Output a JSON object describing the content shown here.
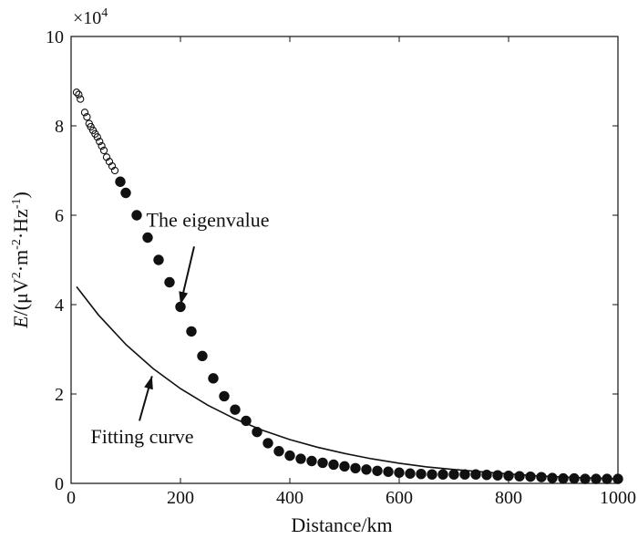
{
  "chart_data": {
    "type": "scatter",
    "title": "",
    "xlabel": "Distance/km",
    "ylabel": "E/(μV²·m⁻²·Hz⁻¹)",
    "ylabel_parts": {
      "italic": "E",
      "rest": "/(μV",
      "sup1": "2",
      "mid1": "·m",
      "sup2": "-2",
      "mid2": "·Hz",
      "sup3": "-1",
      "end": ")"
    },
    "y_multiplier": "×10",
    "y_multiplier_exp": "4",
    "xlim": [
      0,
      1000
    ],
    "ylim": [
      0,
      10
    ],
    "grid": false,
    "x_ticks": [
      "0",
      "200",
      "400",
      "600",
      "800",
      "1000"
    ],
    "y_ticks": [
      "0",
      "2",
      "4",
      "6",
      "8",
      "10"
    ],
    "series": [
      {
        "kind": "scatter",
        "color": "#111111",
        "marker": "circle-open",
        "points": [
          [
            10,
            8.75
          ],
          [
            14,
            8.7
          ],
          [
            17,
            8.6
          ],
          [
            25,
            8.3
          ],
          [
            29,
            8.2
          ],
          [
            33,
            8.05
          ],
          [
            36,
            7.98
          ],
          [
            40,
            7.9
          ],
          [
            44,
            7.82
          ],
          [
            48,
            7.75
          ],
          [
            52,
            7.65
          ],
          [
            56,
            7.55
          ],
          [
            60,
            7.45
          ],
          [
            65,
            7.3
          ],
          [
            70,
            7.2
          ],
          [
            75,
            7.1
          ],
          [
            80,
            7.0
          ],
          [
            90,
            6.75
          ],
          [
            100,
            6.5
          ],
          [
            120,
            6.0
          ],
          [
            140,
            5.5
          ],
          [
            160,
            5.0
          ],
          [
            180,
            4.5
          ],
          [
            200,
            3.95
          ],
          [
            220,
            3.4
          ],
          [
            240,
            2.85
          ],
          [
            260,
            2.35
          ],
          [
            280,
            1.95
          ],
          [
            300,
            1.65
          ],
          [
            320,
            1.4
          ],
          [
            340,
            1.15
          ],
          [
            360,
            0.9
          ],
          [
            380,
            0.72
          ],
          [
            400,
            0.62
          ],
          [
            420,
            0.55
          ],
          [
            440,
            0.5
          ],
          [
            460,
            0.46
          ],
          [
            480,
            0.42
          ],
          [
            500,
            0.38
          ],
          [
            520,
            0.34
          ],
          [
            540,
            0.31
          ],
          [
            560,
            0.28
          ],
          [
            580,
            0.26
          ],
          [
            600,
            0.24
          ],
          [
            620,
            0.22
          ],
          [
            640,
            0.21
          ],
          [
            660,
            0.2
          ],
          [
            680,
            0.2
          ],
          [
            700,
            0.2
          ],
          [
            720,
            0.2
          ],
          [
            740,
            0.2
          ],
          [
            760,
            0.19
          ],
          [
            780,
            0.18
          ],
          [
            800,
            0.17
          ],
          [
            820,
            0.16
          ],
          [
            840,
            0.15
          ],
          [
            860,
            0.14
          ],
          [
            880,
            0.12
          ],
          [
            900,
            0.11
          ],
          [
            920,
            0.11
          ],
          [
            940,
            0.1
          ],
          [
            960,
            0.1
          ],
          [
            980,
            0.1
          ],
          [
            1000,
            0.1
          ]
        ]
      },
      {
        "kind": "line",
        "color": "#111111",
        "x": [
          10,
          50,
          100,
          150,
          200,
          250,
          300,
          350,
          400,
          450,
          500,
          550,
          600,
          650,
          700,
          750,
          800,
          850,
          900,
          950,
          1000
        ],
        "y": [
          4.4,
          3.77,
          3.11,
          2.57,
          2.12,
          1.75,
          1.44,
          1.19,
          0.98,
          0.81,
          0.67,
          0.55,
          0.45,
          0.37,
          0.31,
          0.26,
          0.21,
          0.17,
          0.14,
          0.12,
          0.1
        ]
      }
    ],
    "annotations": [
      {
        "text": "The eigenvalue",
        "text_pos": [
          250,
          5.75
        ],
        "arrow_from": [
          225,
          5.3
        ],
        "arrow_to": [
          200,
          4.0
        ]
      },
      {
        "text": "Fitting curve",
        "text_pos": [
          130,
          0.9
        ],
        "arrow_from": [
          125,
          1.4
        ],
        "arrow_to": [
          148,
          2.4
        ]
      }
    ]
  }
}
